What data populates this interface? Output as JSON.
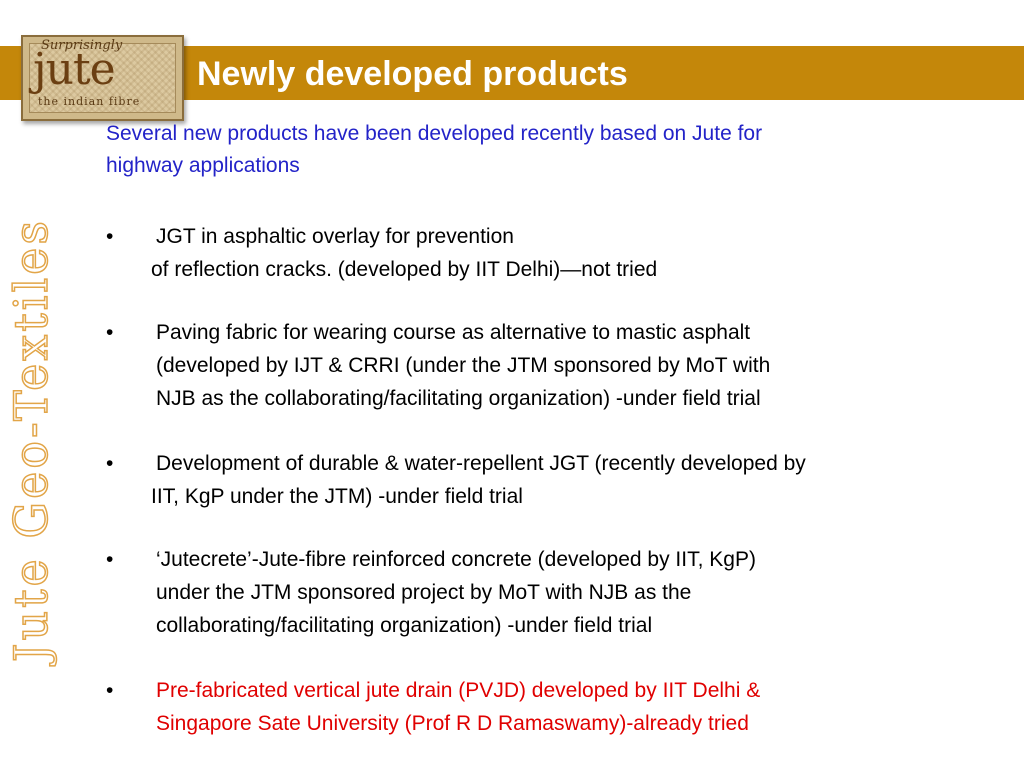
{
  "header": {
    "title": "Newly developed products"
  },
  "logo": {
    "top_text": "Surprisingly",
    "main_text": "jute",
    "sub_text": "the indian fibre"
  },
  "side_title": "Jute Geo-Textiles",
  "intro": {
    "line1": "Several new products have been developed recently based on Jute for",
    "line2": "highway applications"
  },
  "bullets": [
    {
      "line1": "JGT in asphaltic overlay for prevention",
      "line2": "of reflection cracks. (developed by IIT Delhi)—not tried"
    },
    {
      "line1": "Paving fabric for wearing course as alternative to mastic asphalt",
      "line2": "(developed by IJT & CRRI (under the JTM sponsored by MoT with",
      "line3": "NJB as the collaborating/facilitating organization) -under field trial"
    },
    {
      "line1": "Development of durable & water-repellent JGT (recently developed by",
      "line2": "IIT,   KgP under the JTM) -under field trial"
    },
    {
      "line1": "‘Jutecrete’-Jute-fibre reinforced concrete (developed by IIT, KgP)",
      "line2": "under the JTM sponsored project by MoT with NJB as the",
      "line3": "collaborating/facilitating organization) -under field trial"
    },
    {
      "line1": "Pre-fabricated vertical jute drain (PVJD) developed by IIT Delhi &",
      "line2": "Singapore Sate University (Prof R D Ramaswamy)-already tried"
    }
  ],
  "bullet_symbol": "•",
  "colors": {
    "title_bar": "#c4870a",
    "intro_text": "#2323c8",
    "highlight_text": "#e00000",
    "side_title_outline": "#e2a548"
  }
}
